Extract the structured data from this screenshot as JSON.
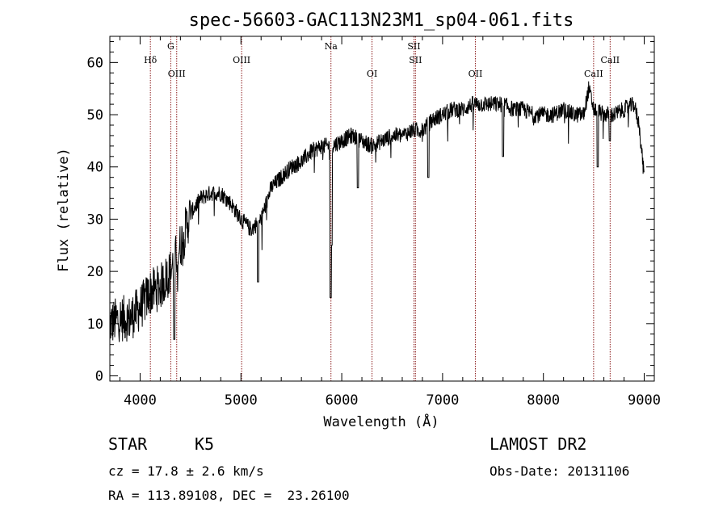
{
  "chart_data": {
    "type": "line",
    "title": "spec-56603-GAC113N23M1_sp04-061.fits",
    "xlabel": "Wavelength (Å)",
    "ylabel": "Flux (relative)",
    "xlim": [
      3700,
      9100
    ],
    "ylim": [
      -1,
      65
    ],
    "xticks": [
      4000,
      5000,
      6000,
      7000,
      8000,
      9000
    ],
    "yticks": [
      0,
      10,
      20,
      30,
      40,
      50,
      60
    ],
    "grid": false,
    "line_color": "#000000",
    "marker_color": "#8b1a1a",
    "continuum": [
      [
        3700,
        10
      ],
      [
        3800,
        11
      ],
      [
        3900,
        11
      ],
      [
        4000,
        13
      ],
      [
        4100,
        16
      ],
      [
        4200,
        17
      ],
      [
        4300,
        20
      ],
      [
        4400,
        25
      ],
      [
        4500,
        31
      ],
      [
        4600,
        34
      ],
      [
        4700,
        35
      ],
      [
        4800,
        35
      ],
      [
        4900,
        33
      ],
      [
        5000,
        30
      ],
      [
        5100,
        28
      ],
      [
        5200,
        30
      ],
      [
        5300,
        36
      ],
      [
        5400,
        38
      ],
      [
        5500,
        40
      ],
      [
        5600,
        41
      ],
      [
        5700,
        43
      ],
      [
        5800,
        44
      ],
      [
        5900,
        44
      ],
      [
        6000,
        45
      ],
      [
        6100,
        46
      ],
      [
        6200,
        45
      ],
      [
        6300,
        44
      ],
      [
        6400,
        45
      ],
      [
        6500,
        46
      ],
      [
        6600,
        46
      ],
      [
        6700,
        47
      ],
      [
        6800,
        47
      ],
      [
        6900,
        49
      ],
      [
        7000,
        50
      ],
      [
        7100,
        51
      ],
      [
        7200,
        51
      ],
      [
        7300,
        52
      ],
      [
        7400,
        52
      ],
      [
        7500,
        52
      ],
      [
        7600,
        52
      ],
      [
        7700,
        51
      ],
      [
        7800,
        51
      ],
      [
        7900,
        50
      ],
      [
        8000,
        50
      ],
      [
        8100,
        50
      ],
      [
        8200,
        51
      ],
      [
        8300,
        50
      ],
      [
        8400,
        50
      ],
      [
        8450,
        55
      ],
      [
        8500,
        51
      ],
      [
        8600,
        50
      ],
      [
        8700,
        50
      ],
      [
        8800,
        51
      ],
      [
        8900,
        52
      ],
      [
        8950,
        48
      ],
      [
        9000,
        38
      ]
    ],
    "absorption": [
      [
        4340,
        7
      ],
      [
        5170,
        18
      ],
      [
        5890,
        15
      ],
      [
        5900,
        25
      ],
      [
        6160,
        36
      ],
      [
        6860,
        38
      ],
      [
        7600,
        42
      ],
      [
        8540,
        40
      ],
      [
        8660,
        45
      ]
    ],
    "lines": [
      {
        "label": "Hδ",
        "x": 4102,
        "row": 2
      },
      {
        "label": "G",
        "x": 4304,
        "row": 1
      },
      {
        "label": "OIII",
        "x": 4363,
        "row": 3
      },
      {
        "label": "OIII",
        "x": 5007,
        "row": 2
      },
      {
        "label": "Na",
        "x": 5893,
        "row": 1
      },
      {
        "label": "OI",
        "x": 6300,
        "row": 3
      },
      {
        "label": "SII",
        "x": 6716,
        "row": 1
      },
      {
        "label": "SII",
        "x": 6731,
        "row": 2
      },
      {
        "label": "OII",
        "x": 7325,
        "row": 3
      },
      {
        "label": "CaII",
        "x": 8498,
        "row": 3
      },
      {
        "label": "CaII",
        "x": 8662,
        "row": 2
      }
    ]
  },
  "info": {
    "class": "STAR",
    "subclass": "K5",
    "survey": "LAMOST DR2",
    "cz": "cz = 17.8 ± 2.6 km/s",
    "obs_date": "Obs-Date: 20131106",
    "radec": "RA = 113.89108, DEC =  23.26100"
  }
}
